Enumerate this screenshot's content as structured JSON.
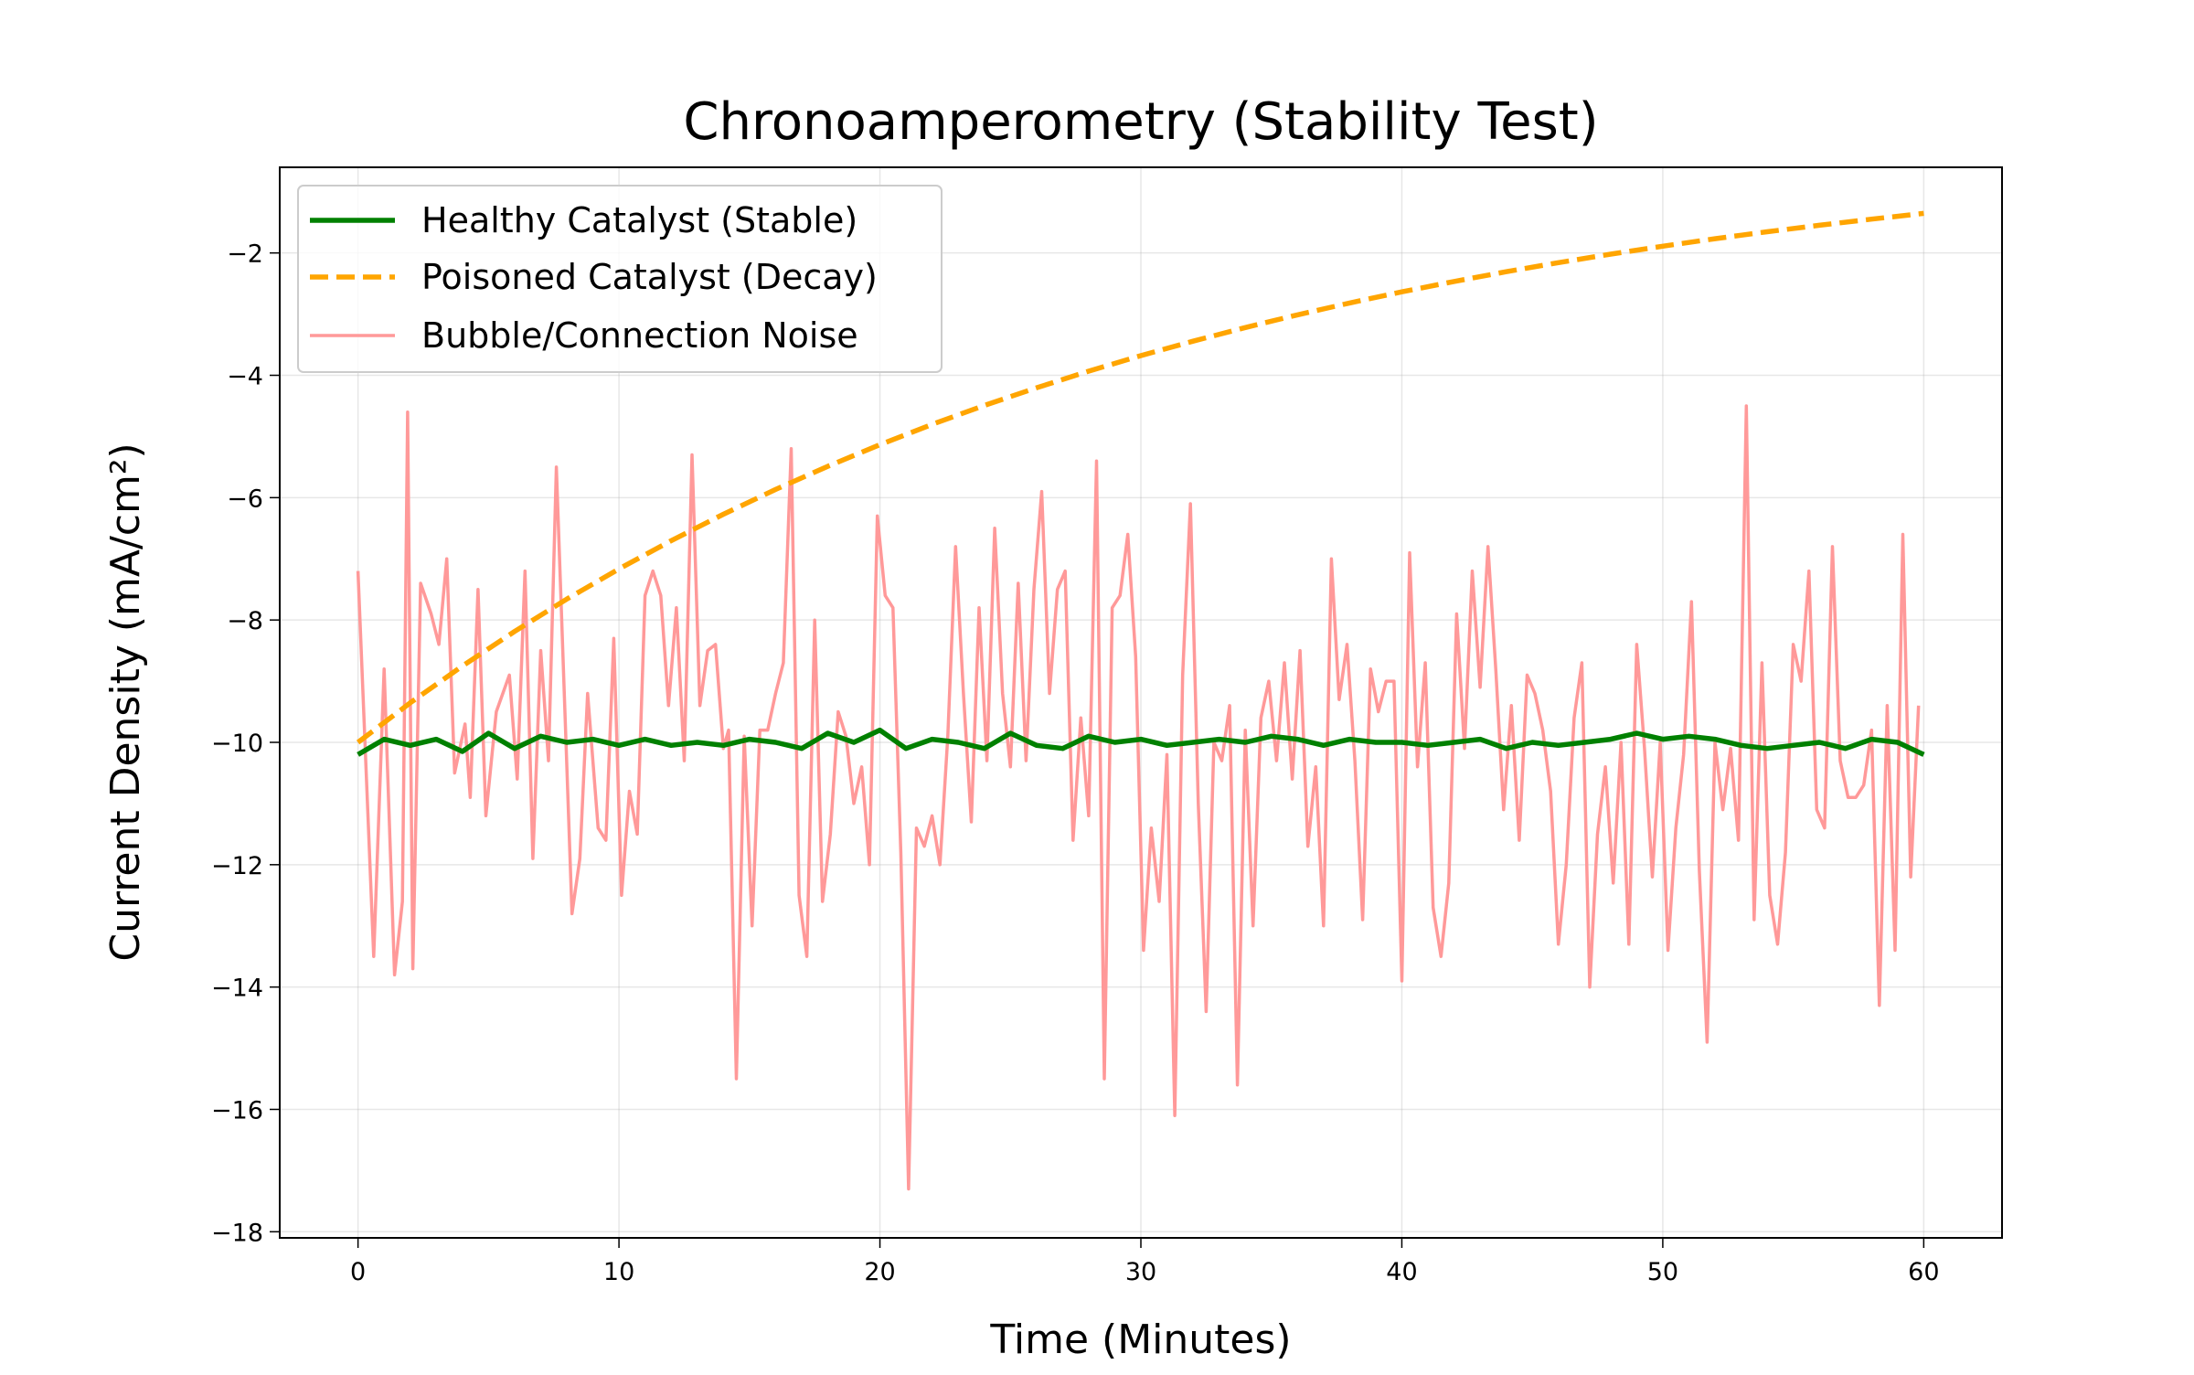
{
  "chart_data": {
    "type": "line",
    "title": "Chronoamperometry (Stability Test)",
    "xlabel": "Time (Minutes)",
    "ylabel": "Current Density (mA/cm²)",
    "xlim": [
      -3,
      63
    ],
    "ylim": [
      -18.1,
      -0.6
    ],
    "xticks": [
      0,
      10,
      20,
      30,
      40,
      50,
      60
    ],
    "yticks": [
      -18,
      -16,
      -14,
      -12,
      -10,
      -8,
      -6,
      -4,
      -2
    ],
    "grid": true,
    "legend_position": "top-left",
    "series": [
      {
        "name": "Healthy Catalyst (Stable)",
        "color": "#008000",
        "style": "solid",
        "x": [
          0,
          1,
          2,
          3,
          4,
          5,
          6,
          7,
          8,
          9,
          10,
          11,
          12,
          13,
          14,
          15,
          16,
          17,
          18,
          19,
          20,
          21,
          22,
          23,
          24,
          25,
          26,
          27,
          28,
          29,
          30,
          31,
          32,
          33,
          34,
          35,
          36,
          37,
          38,
          39,
          40,
          41,
          42,
          43,
          44,
          45,
          46,
          47,
          48,
          49,
          50,
          51,
          52,
          53,
          54,
          55,
          56,
          57,
          58,
          59,
          60
        ],
        "y": [
          -10.2,
          -9.95,
          -10.05,
          -9.95,
          -10.15,
          -9.85,
          -10.1,
          -9.9,
          -10.0,
          -9.95,
          -10.05,
          -9.95,
          -10.05,
          -10.0,
          -10.05,
          -9.95,
          -10.0,
          -10.1,
          -9.85,
          -10.0,
          -9.8,
          -10.1,
          -9.95,
          -10.0,
          -10.1,
          -9.85,
          -10.05,
          -10.1,
          -9.9,
          -10.0,
          -9.95,
          -10.05,
          -10.0,
          -9.95,
          -10.0,
          -9.9,
          -9.95,
          -10.05,
          -9.95,
          -10.0,
          -10.0,
          -10.05,
          -10.0,
          -9.95,
          -10.1,
          -10.0,
          -10.05,
          -10.0,
          -9.95,
          -9.85,
          -9.95,
          -9.9,
          -9.95,
          -10.05,
          -10.1,
          -10.05,
          -10.0,
          -10.1,
          -9.95,
          -10.0,
          -10.2
        ]
      },
      {
        "name": "Poisoned Catalyst (Decay)",
        "color": "#FFA500",
        "style": "dashed",
        "x": [
          0,
          2,
          4,
          6,
          8,
          10,
          12,
          14,
          16,
          18,
          20,
          22,
          24,
          26,
          28,
          30,
          32,
          34,
          36,
          38,
          40,
          42,
          44,
          46,
          48,
          50,
          52,
          54,
          56,
          58,
          60
        ],
        "y": [
          -10,
          -9.355,
          -8.752,
          -8.187,
          -7.659,
          -7.165,
          -6.703,
          -6.271,
          -5.866,
          -5.488,
          -5.134,
          -4.803,
          -4.493,
          -4.204,
          -3.932,
          -3.679,
          -3.442,
          -3.22,
          -3.012,
          -2.818,
          -2.636,
          -2.466,
          -2.307,
          -2.158,
          -2.019,
          -1.889,
          -1.767,
          -1.653,
          -1.547,
          -1.447,
          -1.353
        ]
      },
      {
        "name": "Bubble/Connection Noise",
        "color": "#FF9999",
        "style": "solid",
        "x": [
          0,
          0.6,
          1.0,
          1.4,
          1.7,
          1.9,
          2.1,
          2.4,
          2.8,
          3.1,
          3.4,
          3.7,
          4.1,
          4.3,
          4.6,
          4.9,
          5.3,
          5.8,
          6.1,
          6.4,
          6.7,
          7.0,
          7.3,
          7.6,
          8.2,
          8.5,
          8.8,
          9.2,
          9.5,
          9.8,
          10.1,
          10.4,
          10.7,
          11.0,
          11.3,
          11.6,
          11.9,
          12.2,
          12.5,
          12.8,
          13.1,
          13.4,
          13.7,
          14.0,
          14.2,
          14.5,
          14.8,
          15.1,
          15.4,
          15.7,
          16.0,
          16.3,
          16.6,
          16.9,
          17.2,
          17.5,
          17.8,
          18.1,
          18.4,
          18.7,
          19.0,
          19.3,
          19.6,
          19.9,
          20.2,
          20.5,
          20.8,
          21.1,
          21.4,
          21.7,
          22.0,
          22.3,
          22.6,
          22.9,
          23.2,
          23.5,
          23.8,
          24.1,
          24.4,
          24.7,
          25.0,
          25.3,
          25.6,
          25.9,
          26.2,
          26.5,
          26.8,
          27.1,
          27.4,
          27.7,
          28.0,
          28.3,
          28.6,
          28.9,
          29.2,
          29.5,
          29.8,
          30.1,
          30.4,
          30.7,
          31.0,
          31.3,
          31.6,
          31.9,
          32.2,
          32.5,
          32.8,
          33.1,
          33.4,
          33.7,
          34.0,
          34.3,
          34.6,
          34.9,
          35.2,
          35.5,
          35.8,
          36.1,
          36.4,
          36.7,
          37.0,
          37.3,
          37.6,
          37.9,
          38.2,
          38.5,
          38.8,
          39.1,
          39.4,
          39.7,
          40.0,
          40.3,
          40.6,
          40.9,
          41.2,
          41.5,
          41.8,
          42.1,
          42.4,
          42.7,
          43.0,
          43.3,
          43.6,
          43.9,
          44.2,
          44.5,
          44.8,
          45.1,
          45.4,
          45.7,
          46.0,
          46.3,
          46.6,
          46.9,
          47.2,
          47.5,
          47.8,
          48.1,
          48.4,
          48.7,
          49.0,
          49.3,
          49.6,
          49.9,
          50.2,
          50.5,
          50.8,
          51.1,
          51.4,
          51.7,
          52.0,
          52.3,
          52.6,
          52.9,
          53.2,
          53.5,
          53.8,
          54.1,
          54.4,
          54.7,
          55.0,
          55.3,
          55.6,
          55.9,
          56.2,
          56.5,
          56.8,
          57.1,
          57.4,
          57.7,
          58.0,
          58.3,
          58.6,
          58.9,
          59.2,
          59.5,
          59.8
        ],
        "y": [
          -7.2,
          -13.5,
          -8.8,
          -13.8,
          -12.6,
          -4.6,
          -13.7,
          -7.4,
          -7.9,
          -8.4,
          -7.0,
          -10.5,
          -9.7,
          -10.9,
          -7.5,
          -11.2,
          -9.5,
          -8.9,
          -10.6,
          -7.2,
          -11.9,
          -8.5,
          -10.3,
          -5.5,
          -12.8,
          -11.9,
          -9.2,
          -11.4,
          -11.6,
          -8.3,
          -12.5,
          -10.8,
          -11.5,
          -7.6,
          -7.2,
          -7.6,
          -9.4,
          -7.8,
          -10.3,
          -5.3,
          -9.4,
          -8.5,
          -8.4,
          -10.1,
          -9.8,
          -15.5,
          -9.9,
          -13.0,
          -9.8,
          -9.8,
          -9.2,
          -8.7,
          -5.2,
          -12.5,
          -13.5,
          -8.0,
          -12.6,
          -11.5,
          -9.5,
          -9.9,
          -11.0,
          -10.4,
          -12.0,
          -6.3,
          -7.6,
          -7.8,
          -11.8,
          -17.3,
          -11.4,
          -11.7,
          -11.2,
          -12.0,
          -9.9,
          -6.8,
          -9.2,
          -11.3,
          -7.8,
          -10.3,
          -6.5,
          -9.2,
          -10.4,
          -7.4,
          -10.3,
          -7.5,
          -5.9,
          -9.2,
          -7.5,
          -7.2,
          -11.6,
          -9.6,
          -11.2,
          -5.4,
          -15.5,
          -7.8,
          -7.6,
          -6.6,
          -8.6,
          -13.4,
          -11.4,
          -12.6,
          -10.2,
          -16.1,
          -8.9,
          -6.1,
          -11.0,
          -14.4,
          -10.0,
          -10.3,
          -9.4,
          -15.6,
          -9.8,
          -13.0,
          -9.6,
          -9.0,
          -10.3,
          -8.7,
          -10.6,
          -8.5,
          -11.7,
          -10.4,
          -13.0,
          -7.0,
          -9.3,
          -8.4,
          -10.3,
          -12.9,
          -8.8,
          -9.5,
          -9.0,
          -9.0,
          -13.9,
          -6.9,
          -10.4,
          -8.7,
          -12.7,
          -13.5,
          -12.3,
          -7.9,
          -10.1,
          -7.2,
          -9.1,
          -6.8,
          -8.8,
          -11.1,
          -9.4,
          -11.6,
          -8.9,
          -9.2,
          -9.8,
          -10.8,
          -13.3,
          -12.0,
          -9.6,
          -8.7,
          -14.0,
          -11.5,
          -10.4,
          -12.3,
          -10.0,
          -13.3,
          -8.4,
          -10.1,
          -12.2,
          -10.0,
          -13.4,
          -11.4,
          -10.2,
          -7.7,
          -12.1,
          -14.9,
          -10.0,
          -11.1,
          -10.1,
          -11.6,
          -4.5,
          -12.9,
          -8.7,
          -12.5,
          -13.3,
          -11.8,
          -8.4,
          -9.0,
          -7.2,
          -11.1,
          -11.4,
          -6.8,
          -10.3,
          -10.9,
          -10.9,
          -10.7,
          -9.8,
          -14.3,
          -9.4,
          -13.4,
          -6.6,
          -12.2,
          -9.4
        ]
      }
    ]
  }
}
